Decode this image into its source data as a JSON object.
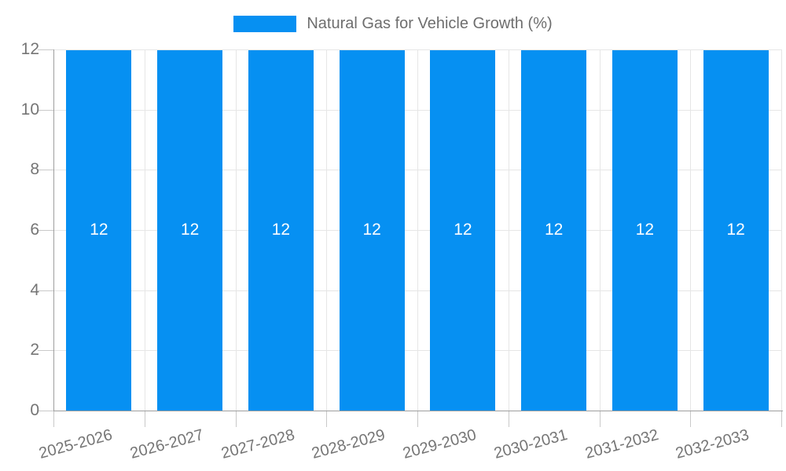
{
  "chart_data": {
    "type": "bar",
    "title": "Natural Gas for Vehicle Growth (%)",
    "categories": [
      "2025-2026",
      "2026-2027",
      "2027-2028",
      "2028-2029",
      "2029-2030",
      "2030-2031",
      "2031-2032",
      "2032-2033"
    ],
    "values": [
      12,
      12,
      12,
      12,
      12,
      12,
      12,
      12
    ],
    "bar_labels": [
      "12",
      "12",
      "12",
      "12",
      "12",
      "12",
      "12",
      "12"
    ],
    "xlabel": "",
    "ylabel": "",
    "ylim": [
      0,
      12
    ],
    "yticks": [
      0,
      2,
      4,
      6,
      8,
      10,
      12
    ],
    "grid": "on",
    "legend_position": "top-center",
    "colors": {
      "bar": "#0690F2",
      "grid": "#e6e6e6",
      "axis": "#9e9e9e",
      "tick": "#c9c9c9",
      "axis_text": "#757575",
      "legend_text": "#6e6e6e",
      "value_label": "#ffffff",
      "background": "#ffffff"
    }
  }
}
